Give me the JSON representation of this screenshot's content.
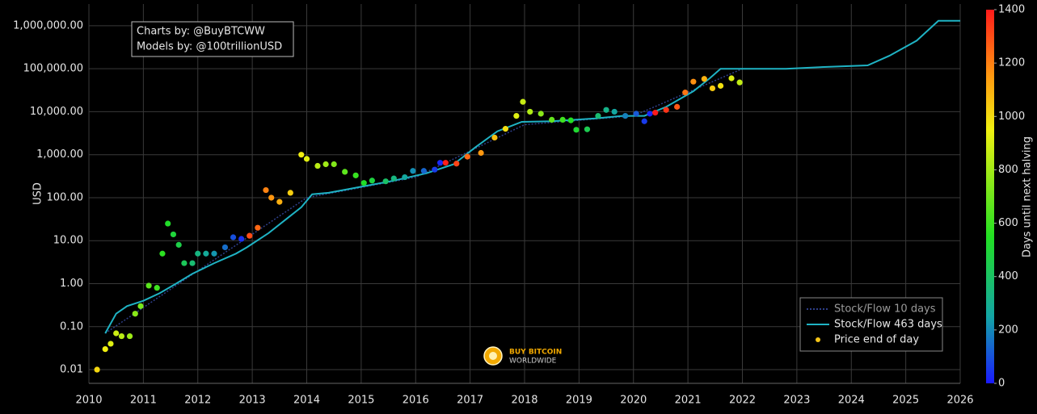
{
  "chart_data": {
    "type": "scatter",
    "annotations": [
      "Charts by: @BuyBTCWW",
      "Models by: @100trillionUSD"
    ],
    "logo": [
      "BUY BITCOIN",
      "WORLDWIDE"
    ],
    "y_label": "USD",
    "log_y": true,
    "grid": true,
    "legend": "bottom right",
    "xlim": [
      2010,
      2026
    ],
    "xticks": [
      2010,
      2011,
      2012,
      2013,
      2014,
      2015,
      2016,
      2017,
      2018,
      2019,
      2020,
      2021,
      2022,
      2023,
      2024,
      2025,
      2026
    ],
    "ylim": [
      0.0048,
      3200000
    ],
    "yticks": [
      {
        "value": 0.01,
        "label": "0.01"
      },
      {
        "value": 0.1,
        "label": "0.10"
      },
      {
        "value": 1,
        "label": "1.00"
      },
      {
        "value": 10,
        "label": "10.00"
      },
      {
        "value": 100,
        "label": "100.00"
      },
      {
        "value": 1000,
        "label": "1,000.00"
      },
      {
        "value": 10000,
        "label": "10,000.00"
      },
      {
        "value": 100000,
        "label": "100,000.00"
      },
      {
        "value": 1000000,
        "label": "1,000,000.00"
      }
    ],
    "colorbar": {
      "label": "Days until next halving",
      "lim": [
        0,
        1400
      ],
      "ticks": [
        0,
        200,
        400,
        600,
        800,
        1000,
        1200,
        1400
      ],
      "colorscale": [
        [
          0,
          "#1a1aff"
        ],
        [
          250,
          "#13a5a5"
        ],
        [
          550,
          "#22e022"
        ],
        [
          950,
          "#f0f010"
        ],
        [
          1150,
          "#ff9a10"
        ],
        [
          1400,
          "#ff1a1a"
        ]
      ]
    },
    "series": [
      {
        "name": "Stock/Flow 10 days",
        "kind": "line",
        "dash": true,
        "color": "#2e3f8a",
        "text_color": "#9a9a9a",
        "x": [
          2010.3,
          2012,
          2014,
          2016,
          2018,
          2020,
          2022
        ],
        "values": [
          0.07,
          2,
          100,
          300,
          5000,
          8000,
          100000
        ]
      },
      {
        "name": "Stock/Flow 463 days",
        "kind": "line",
        "color": "#1fb3c4",
        "x": [
          2010.3,
          2010.5,
          2010.7,
          2011.0,
          2011.3,
          2011.6,
          2011.9,
          2012.3,
          2012.7,
          2012.9,
          2013.3,
          2013.6,
          2013.9,
          2014.1,
          2014.4,
          2015.0,
          2015.6,
          2016.2,
          2016.7,
          2017.1,
          2017.5,
          2017.95,
          2018.5,
          2019.3,
          2019.8,
          2020.2,
          2020.6,
          2021.1,
          2021.4,
          2021.6,
          2022.0,
          2022.8,
          2023.5,
          2024.3,
          2024.7,
          2025.2,
          2025.6,
          2026.0
        ],
        "values": [
          0.07,
          0.2,
          0.3,
          0.4,
          0.6,
          1,
          1.7,
          3,
          5,
          7,
          15,
          30,
          60,
          120,
          130,
          180,
          250,
          370,
          600,
          1500,
          3500,
          5800,
          6000,
          7000,
          8000,
          8000,
          13000,
          30000,
          60000,
          100000,
          100000,
          100000,
          110000,
          120000,
          200000,
          450000,
          1300000,
          1300000
        ]
      },
      {
        "name": "Price end of day",
        "kind": "points",
        "color": "#f5c518",
        "x": [
          2010.15,
          2010.3,
          2010.4,
          2010.5,
          2010.6,
          2010.75,
          2010.85,
          2010.95,
          2011.1,
          2011.25,
          2011.35,
          2011.45,
          2011.55,
          2011.65,
          2011.75,
          2011.9,
          2012.0,
          2012.15,
          2012.3,
          2012.5,
          2012.65,
          2012.8,
          2012.95,
          2013.1,
          2013.25,
          2013.35,
          2013.5,
          2013.7,
          2013.9,
          2014.0,
          2014.2,
          2014.35,
          2014.5,
          2014.7,
          2014.9,
          2015.05,
          2015.2,
          2015.45,
          2015.6,
          2015.8,
          2015.95,
          2016.15,
          2016.35,
          2016.45,
          2016.55,
          2016.75,
          2016.95,
          2017.2,
          2017.45,
          2017.65,
          2017.85,
          2017.97,
          2018.1,
          2018.3,
          2018.5,
          2018.7,
          2018.85,
          2018.95,
          2019.15,
          2019.35,
          2019.5,
          2019.65,
          2019.85,
          2020.05,
          2020.2,
          2020.3,
          2020.4,
          2020.6,
          2020.8,
          2020.95,
          2021.1,
          2021.3,
          2021.45,
          2021.6,
          2021.8,
          2021.95
        ],
        "values": [
          0.01,
          0.03,
          0.04,
          0.07,
          0.06,
          0.06,
          0.2,
          0.3,
          0.9,
          0.8,
          5,
          25,
          14,
          8,
          3,
          3,
          5,
          5,
          5,
          7,
          12,
          11,
          13,
          20,
          150,
          100,
          80,
          130,
          1000,
          800,
          550,
          600,
          600,
          400,
          330,
          220,
          250,
          240,
          280,
          300,
          420,
          420,
          450,
          650,
          650,
          620,
          900,
          1100,
          2500,
          4000,
          8000,
          17000,
          10000,
          9000,
          6500,
          6500,
          6300,
          3800,
          3900,
          8000,
          11000,
          10000,
          8000,
          9000,
          6000,
          9000,
          9500,
          11000,
          13000,
          28000,
          50000,
          58000,
          35000,
          40000,
          60000,
          48000
        ],
        "days": [
          1007,
          953,
          916,
          880,
          843,
          788,
          752,
          715,
          661,
          606,
          569,
          533,
          496,
          460,
          423,
          369,
          332,
          277,
          223,
          150,
          95,
          40,
          1303,
          1248,
          1194,
          1157,
          1102,
          1029,
          956,
          920,
          847,
          792,
          737,
          664,
          591,
          537,
          482,
          391,
          336,
          263,
          208,
          135,
          62,
          26,
          1391,
          1318,
          1245,
          1153,
          1062,
          989,
          916,
          872,
          825,
          752,
          679,
          606,
          551,
          515,
          442,
          369,
          314,
          259,
          186,
          113,
          58,
          22,
          1400,
          1351,
          1278,
          1223,
          1168,
          1095,
          1040,
          985,
          912,
          858
        ]
      }
    ]
  }
}
